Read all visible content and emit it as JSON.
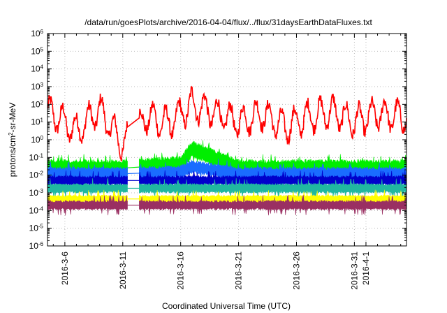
{
  "chart_data": {
    "type": "line",
    "title": "/data/run/goesPlots/archive/2016-04-04/flux/../flux/31daysEarthDataFluxes.txt",
    "xlabel": "Coordinated Universal Time (UTC)",
    "ylabel_parts": [
      "protons/cm",
      "2",
      "-sr-MeV"
    ],
    "yscale": "log",
    "ylim_exp": [
      -6,
      6
    ],
    "y_ticks": [
      {
        "base": "10",
        "exp": "-6"
      },
      {
        "base": "10",
        "exp": "-5"
      },
      {
        "base": "10",
        "exp": "-4"
      },
      {
        "base": "10",
        "exp": "-3"
      },
      {
        "base": "10",
        "exp": "-2"
      },
      {
        "base": "10",
        "exp": "-1"
      },
      {
        "base": "10",
        "exp": "0"
      },
      {
        "base": "10",
        "exp": "1"
      },
      {
        "base": "10",
        "exp": "2"
      },
      {
        "base": "10",
        "exp": "3"
      },
      {
        "base": "10",
        "exp": "4"
      },
      {
        "base": "10",
        "exp": "5"
      },
      {
        "base": "10",
        "exp": "6"
      }
    ],
    "x_range": [
      "2016-03-04 12:00",
      "2016-04-04 12:00"
    ],
    "x_ticks": [
      "2016-3-6",
      "2016-3-11",
      "2016-3-16",
      "2016-3-21",
      "2016-3-26",
      "2016-3-31",
      "2016-4-1"
    ],
    "grid": true,
    "data_gap": [
      "2016-03-11 10:00",
      "2016-03-12 10:00"
    ],
    "series": [
      {
        "color": "#ff0000",
        "base_log": 1.0,
        "amplitude": 0.8,
        "noise": 0.35,
        "kind": "line",
        "x": [
          "2016-03-05",
          "2016-03-07",
          "2016-03-09",
          "2016-03-11",
          "2016-03-13",
          "2016-03-15",
          "2016-03-17",
          "2016-03-19",
          "2016-03-21",
          "2016-03-23",
          "2016-03-25",
          "2016-03-27",
          "2016-03-29",
          "2016-03-31",
          "2016-04-02",
          "2016-04-04"
        ],
        "y": [
          30,
          3,
          50,
          0.5,
          20,
          8,
          100,
          30,
          10,
          30,
          5,
          20,
          40,
          10,
          30,
          20
        ]
      },
      {
        "color": "#00ee00",
        "base_log": -1.6,
        "amplitude": 0.15,
        "noise": 0.45,
        "kind": "band",
        "x": [
          "2016-03-05",
          "2016-03-11",
          "2016-03-16",
          "2016-03-17",
          "2016-03-21",
          "2016-03-26",
          "2016-03-31",
          "2016-04-04"
        ],
        "y": [
          0.025,
          0.025,
          0.04,
          0.3,
          0.025,
          0.025,
          0.025,
          0.025
        ]
      },
      {
        "color": "#1a6cff",
        "base_log": -1.9,
        "amplitude": 0.1,
        "noise": 0.35,
        "kind": "band",
        "x": [
          "2016-03-05",
          "2016-03-11",
          "2016-03-16",
          "2016-03-17",
          "2016-03-21",
          "2016-03-26",
          "2016-03-31",
          "2016-04-04"
        ],
        "y": [
          0.012,
          0.012,
          0.015,
          0.03,
          0.012,
          0.012,
          0.012,
          0.012
        ]
      },
      {
        "color": "#0000cc",
        "base_log": -2.3,
        "amplitude": 0.1,
        "noise": 0.25,
        "kind": "band",
        "x": [
          "2016-03-05",
          "2016-03-11",
          "2016-03-16",
          "2016-03-21",
          "2016-03-26",
          "2016-03-31",
          "2016-04-04"
        ],
        "y": [
          0.005,
          0.005,
          0.005,
          0.005,
          0.005,
          0.005,
          0.005
        ]
      },
      {
        "color": "#20b8a0",
        "base_log": -2.75,
        "amplitude": 0.05,
        "noise": 0.25,
        "kind": "band",
        "x": [
          "2016-03-05",
          "2016-03-11",
          "2016-03-16",
          "2016-03-21",
          "2016-03-26",
          "2016-03-31",
          "2016-04-04"
        ],
        "y": [
          0.0018,
          0.0018,
          0.0018,
          0.0018,
          0.0018,
          0.0018,
          0.0018
        ]
      },
      {
        "color": "#ffff00",
        "base_log": -3.35,
        "amplitude": 0.05,
        "noise": 0.2,
        "kind": "band",
        "x": [
          "2016-03-05",
          "2016-03-11",
          "2016-03-16",
          "2016-03-21",
          "2016-03-26",
          "2016-03-31",
          "2016-04-04"
        ],
        "y": [
          0.00045,
          0.00045,
          0.00045,
          0.00045,
          0.00045,
          0.00045,
          0.00045
        ]
      },
      {
        "color": "#9a2f62",
        "base_log": -3.7,
        "amplitude": 0.05,
        "noise": 0.25,
        "kind": "band",
        "x": [
          "2016-03-05",
          "2016-03-11",
          "2016-03-16",
          "2016-03-21",
          "2016-03-26",
          "2016-03-31",
          "2016-04-04"
        ],
        "y": [
          0.0002,
          0.0002,
          0.0002,
          0.0002,
          0.0002,
          0.0002,
          0.0002
        ]
      }
    ]
  }
}
